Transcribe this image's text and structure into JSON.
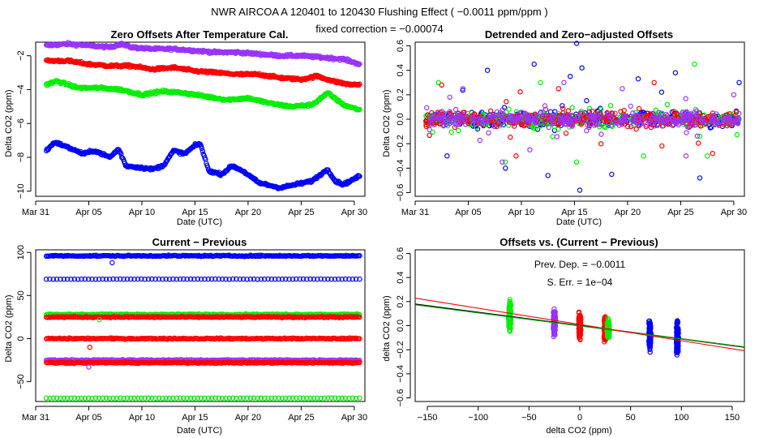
{
  "figure": {
    "title": "NWR   AIRCOA A   120401 to 120430   Flushing Effect ( −0.0011 ppm/ppm )",
    "subtitle": "fixed correction = −0.00074"
  },
  "colors": {
    "purple": "#9933ff",
    "red": "#ff0000",
    "green": "#00ee00",
    "blue": "#0000ff",
    "black": "#000000"
  },
  "chart_data": [
    {
      "id": "zero",
      "type": "scatter",
      "title": "Zero Offsets After Temperature Cal.",
      "xlabel": "Date (UTC)",
      "ylabel": "Delta CO2 (ppm)",
      "xlim": [
        0,
        31
      ],
      "ylim": [
        -10.3,
        -1.2
      ],
      "xticks": [
        {
          "v": 0,
          "label": "Mar 31"
        },
        {
          "v": 5,
          "label": "Apr 05"
        },
        {
          "v": 10,
          "label": "Apr 10"
        },
        {
          "v": 15,
          "label": "Apr 15"
        },
        {
          "v": 20,
          "label": "Apr 20"
        },
        {
          "v": 25,
          "label": "Apr 25"
        },
        {
          "v": 30,
          "label": "Apr 30"
        }
      ],
      "yticks": [
        {
          "v": -2,
          "label": "−2"
        },
        {
          "v": -4,
          "label": "−4"
        },
        {
          "v": -6,
          "label": "−6"
        },
        {
          "v": -8,
          "label": "−8"
        },
        {
          "v": -10,
          "label": "−10"
        }
      ],
      "series": [
        {
          "name": "purple",
          "color": "#9933ff",
          "x": [
            1,
            3,
            5,
            7,
            8,
            9,
            11,
            13,
            15,
            17,
            19,
            21,
            23,
            25,
            27,
            29,
            30.5
          ],
          "y": [
            -1.4,
            -1.3,
            -1.4,
            -1.5,
            -1.3,
            -1.5,
            -1.6,
            -1.6,
            -1.7,
            -1.8,
            -1.8,
            -1.9,
            -2.0,
            -2.0,
            -2.1,
            -2.2,
            -2.5
          ]
        },
        {
          "name": "red",
          "color": "#ff0000",
          "x": [
            1,
            3,
            5,
            7,
            9,
            11,
            13,
            15,
            17,
            19,
            21,
            23,
            25,
            26.5,
            28,
            29.5,
            30.5
          ],
          "y": [
            -2.3,
            -2.3,
            -2.5,
            -2.6,
            -2.6,
            -2.8,
            -2.7,
            -2.9,
            -3.0,
            -3.1,
            -3.1,
            -3.3,
            -3.4,
            -3.2,
            -3.5,
            -3.7,
            -3.7
          ]
        },
        {
          "name": "green",
          "color": "#00ee00",
          "x": [
            1,
            2,
            4,
            6,
            8,
            10,
            12,
            14,
            16,
            18,
            20,
            22,
            24,
            26,
            27.5,
            29,
            30.5
          ],
          "y": [
            -3.7,
            -3.5,
            -3.9,
            -3.9,
            -4.0,
            -4.3,
            -4.1,
            -4.2,
            -4.4,
            -4.6,
            -4.5,
            -4.8,
            -5.0,
            -4.9,
            -4.2,
            -4.9,
            -5.2
          ]
        },
        {
          "name": "blue",
          "color": "#0000ff",
          "x": [
            1,
            1.8,
            3,
            4.5,
            5.5,
            7,
            7.8,
            8.5,
            9.8,
            11,
            12,
            13,
            14,
            15,
            15.5,
            16.3,
            17.5,
            18.5,
            19.5,
            21,
            23,
            24.5,
            26,
            27.5,
            28.2,
            29,
            30.5
          ],
          "y": [
            -7.6,
            -7.1,
            -7.4,
            -7.8,
            -7.6,
            -8.0,
            -7.5,
            -8.5,
            -8.6,
            -8.7,
            -8.5,
            -7.6,
            -7.8,
            -7.3,
            -7.2,
            -8.8,
            -9.0,
            -8.5,
            -8.8,
            -9.5,
            -9.8,
            -9.6,
            -9.4,
            -8.7,
            -9.4,
            -9.6,
            -9.1
          ]
        }
      ]
    },
    {
      "id": "detrended",
      "type": "scatter",
      "title": "Detrended and Zero−adjusted Offsets",
      "xlabel": "Date (UTC)",
      "ylabel": "Delta CO2 (ppm)",
      "xlim": [
        0,
        31
      ],
      "ylim": [
        -0.63,
        0.63
      ],
      "xticks": [
        {
          "v": 0,
          "label": "Mar 31"
        },
        {
          "v": 5,
          "label": "Apr 05"
        },
        {
          "v": 10,
          "label": "Apr 10"
        },
        {
          "v": 15,
          "label": "Apr 15"
        },
        {
          "v": 20,
          "label": "Apr 20"
        },
        {
          "v": 25,
          "label": "Apr 25"
        },
        {
          "v": 30,
          "label": "Apr 30"
        }
      ],
      "yticks": [
        {
          "v": -0.6,
          "label": "−0.6"
        },
        {
          "v": -0.4,
          "label": "−0.4"
        },
        {
          "v": -0.2,
          "label": "−0.2"
        },
        {
          "v": 0.0,
          "label": "0.0"
        },
        {
          "v": 0.2,
          "label": "0.2"
        },
        {
          "v": 0.4,
          "label": "0.4"
        },
        {
          "v": 0.6,
          "label": "0.6"
        }
      ],
      "series": [
        {
          "name": "blue",
          "color": "#0000ff",
          "x": [
            3,
            6.8,
            8.5,
            11.2,
            12.5,
            14.6,
            15.2,
            15.5,
            15.7,
            18.5,
            21,
            24.5,
            26.8,
            30.5
          ],
          "y": [
            -0.3,
            0.4,
            -0.4,
            0.45,
            -0.46,
            0.35,
            0.62,
            -0.58,
            0.42,
            -0.45,
            0.33,
            0.38,
            -0.48,
            0.3
          ]
        },
        {
          "name": "red",
          "color": "#ff0000",
          "x": [
            2.5,
            9.5,
            13.5,
            17.5,
            22.5,
            28
          ],
          "y": [
            0.28,
            -0.3,
            0.25,
            -0.2,
            0.3,
            -0.28
          ]
        },
        {
          "name": "green",
          "color": "#00ee00",
          "x": [
            2.2,
            8.5,
            11.8,
            15.2,
            21.5,
            26.3,
            27.5
          ],
          "y": [
            0.3,
            -0.35,
            0.3,
            -0.35,
            -0.3,
            0.45,
            -0.3
          ]
        },
        {
          "name": "purple",
          "color": "#9933ff",
          "x": [
            4.5,
            8.2,
            10.8,
            14,
            19.5,
            25.5,
            30
          ],
          "y": [
            0.25,
            -0.35,
            -0.25,
            0.3,
            0.25,
            -0.3,
            0.2
          ]
        }
      ]
    },
    {
      "id": "current-previous",
      "type": "scatter",
      "title": "Current − Previous",
      "xlabel": "Date (UTC)",
      "ylabel": "Delta CO2 (ppm)",
      "xlim": [
        0,
        31
      ],
      "ylim": [
        -73,
        103
      ],
      "xticks": [
        {
          "v": 0,
          "label": "Mar 31"
        },
        {
          "v": 5,
          "label": "Apr 05"
        },
        {
          "v": 10,
          "label": "Apr 10"
        },
        {
          "v": 15,
          "label": "Apr 15"
        },
        {
          "v": 20,
          "label": "Apr 20"
        },
        {
          "v": 25,
          "label": "Apr 25"
        },
        {
          "v": 30,
          "label": "Apr 30"
        }
      ],
      "yticks": [
        {
          "v": -50,
          "label": "−50"
        },
        {
          "v": 0,
          "label": "0"
        },
        {
          "v": 50,
          "label": "50"
        },
        {
          "v": 100,
          "label": "100"
        }
      ],
      "series": [
        {
          "name": "blue-dense",
          "color": "#0000ff",
          "style": "dense",
          "x0": 1,
          "x1": 30.5,
          "y": 96
        },
        {
          "name": "blue-sparse",
          "color": "#0000ff",
          "style": "sparse",
          "x0": 1,
          "x1": 30.5,
          "y": 69
        },
        {
          "name": "green-dense",
          "color": "#00ee00",
          "style": "dense",
          "x0": 1,
          "x1": 30.5,
          "y": 28
        },
        {
          "name": "red-dense-upper",
          "color": "#ff0000",
          "style": "dense",
          "x0": 1,
          "x1": 30.5,
          "y": 25
        },
        {
          "name": "red-dense",
          "color": "#ff0000",
          "style": "dense",
          "x0": 1,
          "x1": 30.5,
          "y": 0
        },
        {
          "name": "purple-dense",
          "color": "#9933ff",
          "style": "dense",
          "x0": 1,
          "x1": 30.5,
          "y": -25
        },
        {
          "name": "red-dense-lower",
          "color": "#ff0000",
          "style": "dense",
          "x0": 1,
          "x1": 30.5,
          "y": -28
        },
        {
          "name": "green-sparse",
          "color": "#00ee00",
          "style": "sparse",
          "x0": 1,
          "x1": 30.5,
          "y": -69
        }
      ],
      "outliers": [
        {
          "color": "#0000ff",
          "x": 7.2,
          "y": 88
        },
        {
          "color": "#ff0000",
          "x": 5.1,
          "y": -10
        },
        {
          "color": "#9933ff",
          "x": 5.0,
          "y": -33
        },
        {
          "color": "#00ee00",
          "x": 6.0,
          "y": 22
        }
      ]
    },
    {
      "id": "offsets-vs",
      "type": "scatter",
      "title": "Offsets vs. (Current − Previous)",
      "xlabel": "delta CO2 (ppm)",
      "ylabel": "delta CO2 (ppm)",
      "xlim": [
        -162,
        162
      ],
      "ylim": [
        -0.63,
        0.63
      ],
      "xticks": [
        {
          "v": -150,
          "label": "−150"
        },
        {
          "v": -100,
          "label": "−100"
        },
        {
          "v": -50,
          "label": "−50"
        },
        {
          "v": 0,
          "label": "0"
        },
        {
          "v": 50,
          "label": "50"
        },
        {
          "v": 100,
          "label": "100"
        },
        {
          "v": 150,
          "label": "150"
        }
      ],
      "yticks": [
        {
          "v": -0.6,
          "label": "−0.6"
        },
        {
          "v": -0.4,
          "label": "−0.4"
        },
        {
          "v": -0.2,
          "label": "−0.2"
        },
        {
          "v": 0.0,
          "label": "0.0"
        },
        {
          "v": 0.2,
          "label": "0.2"
        },
        {
          "v": 0.4,
          "label": "0.4"
        },
        {
          "v": 0.6,
          "label": "0.6"
        }
      ],
      "clusters": [
        {
          "color": "#00ee00",
          "x": -69,
          "spread": 0.2
        },
        {
          "color": "#9933ff",
          "x": -25,
          "spread": 0.18
        },
        {
          "color": "#ff0000",
          "x": 0,
          "spread": 0.18
        },
        {
          "color": "#ff0000",
          "x": 25,
          "spread": 0.16
        },
        {
          "color": "#00ee00",
          "x": 28,
          "spread": 0.12
        },
        {
          "color": "#0000ff",
          "x": 69,
          "spread": 0.22
        },
        {
          "color": "#0000ff",
          "x": 96,
          "spread": 0.24
        }
      ],
      "lines": [
        {
          "name": "black-fit",
          "color": "#000000",
          "slope": -0.0011,
          "intercept": 0.0
        },
        {
          "name": "green-fit",
          "color": "#00aa00",
          "slope": -0.00108,
          "intercept": -0.002
        },
        {
          "name": "red-fit",
          "color": "#ff0000",
          "slope": -0.00135,
          "intercept": 0.01
        }
      ],
      "annotations": {
        "prev_dep_label": "Prev. Dep. =  −0.0011",
        "s_err_label": "S. Err. =  1e−04"
      }
    }
  ]
}
